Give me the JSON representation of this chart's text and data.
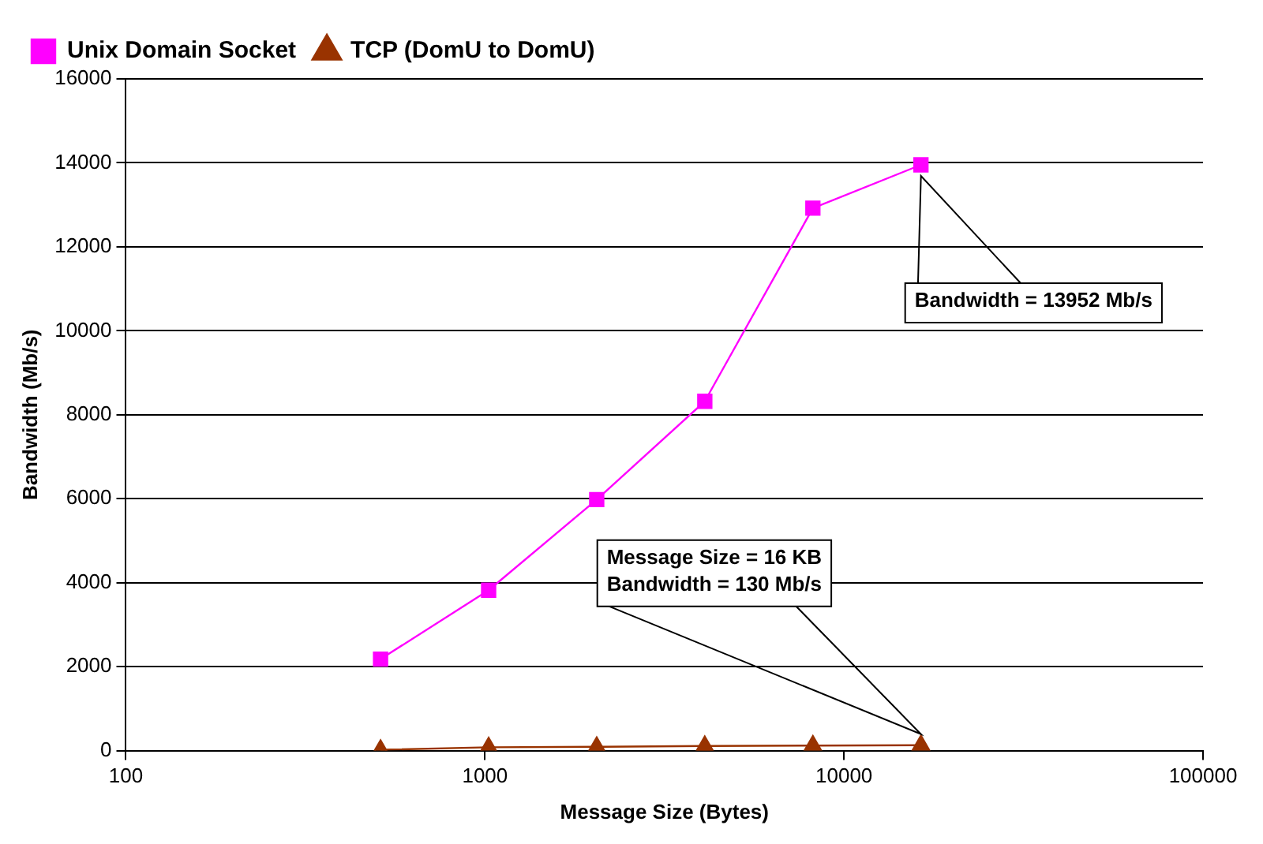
{
  "chart_data": {
    "type": "line",
    "xlabel": "Message Size (Bytes)",
    "ylabel": "Bandwidth (Mb/s)",
    "log": "x",
    "xlim": [
      100,
      100000
    ],
    "xticks": [
      100,
      1000,
      10000,
      100000
    ],
    "ylim": [
      0,
      16000
    ],
    "yticks": [
      0,
      2000,
      4000,
      6000,
      8000,
      10000,
      12000,
      14000,
      16000
    ],
    "grid": "y",
    "legend": "top left",
    "x": [
      512,
      1024,
      2048,
      4096,
      8192,
      16384
    ],
    "series": [
      {
        "name": "Unix Domain Socket",
        "color": "#ff00ff",
        "marker": "square",
        "values": [
          2180,
          3820,
          5980,
          8320,
          12920,
          13952
        ]
      },
      {
        "name": "TCP (DomU to DomU)",
        "color": "#993300",
        "marker": "triangle",
        "values": [
          20,
          80,
          90,
          110,
          120,
          130
        ]
      }
    ],
    "annotations": [
      "Bandwidth = 13952 Mb/s",
      "Message Size = 16 KB\nBandwidth = 130 Mb/s"
    ]
  }
}
